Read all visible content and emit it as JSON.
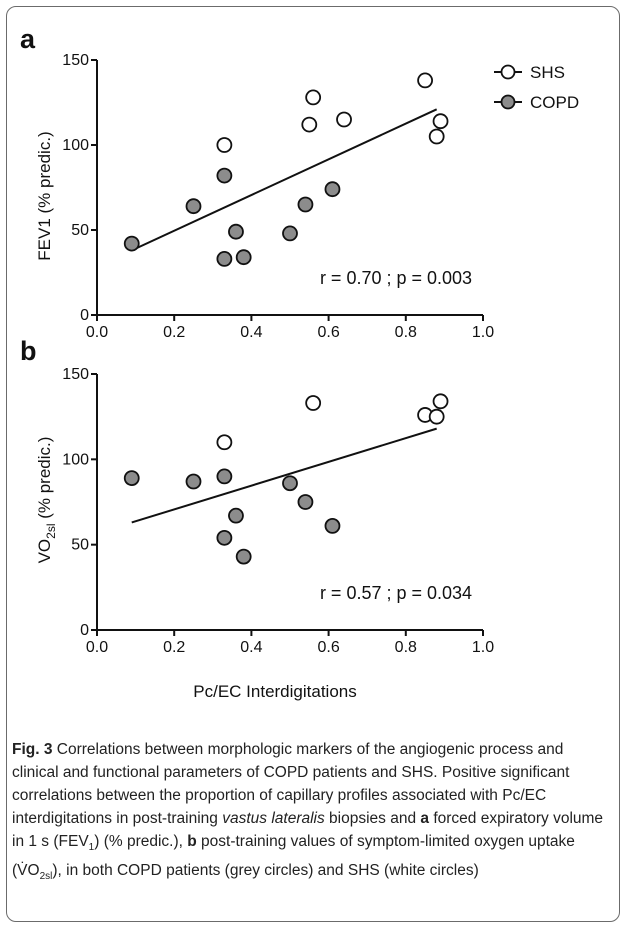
{
  "chart_data": [
    {
      "panel": "a",
      "type": "scatter",
      "ylabel": "FEV1 (% predic.)",
      "xlabel": "",
      "xlim": [
        0.0,
        1.0
      ],
      "ylim": [
        0,
        150
      ],
      "xticks": [
        "0.0",
        "0.2",
        "0.4",
        "0.6",
        "0.8",
        "1.0"
      ],
      "yticks": [
        "0",
        "50",
        "100",
        "150"
      ],
      "series": [
        {
          "name": "SHS",
          "color": "#ffffff",
          "x": [
            0.33,
            0.55,
            0.56,
            0.64,
            0.85,
            0.88,
            0.89
          ],
          "y": [
            100,
            112,
            128,
            115,
            138,
            105,
            114
          ]
        },
        {
          "name": "COPD",
          "color": "#8c8c8c",
          "x": [
            0.09,
            0.25,
            0.33,
            0.33,
            0.36,
            0.38,
            0.5,
            0.54,
            0.61
          ],
          "y": [
            42,
            64,
            82,
            33,
            49,
            34,
            48,
            65,
            74
          ]
        }
      ],
      "fit_line": {
        "x": [
          0.09,
          0.88
        ],
        "y": [
          38,
          121
        ]
      },
      "annotation": "r = 0.70 ; p = 0.003",
      "legend_position": "top-right",
      "grid": false
    },
    {
      "panel": "b",
      "type": "scatter",
      "ylabel": "VO2sl (% predic.)",
      "xlabel": "Pc/EC Interdigitations",
      "xlim": [
        0.0,
        1.0
      ],
      "ylim": [
        0,
        150
      ],
      "xticks": [
        "0.0",
        "0.2",
        "0.4",
        "0.6",
        "0.8",
        "1.0"
      ],
      "yticks": [
        "0",
        "50",
        "100",
        "150"
      ],
      "series": [
        {
          "name": "SHS",
          "color": "#ffffff",
          "x": [
            0.33,
            0.56,
            0.85,
            0.88,
            0.89
          ],
          "y": [
            110,
            133,
            126,
            125,
            134
          ]
        },
        {
          "name": "COPD",
          "color": "#8c8c8c",
          "x": [
            0.09,
            0.25,
            0.33,
            0.33,
            0.36,
            0.38,
            0.5,
            0.54,
            0.61
          ],
          "y": [
            89,
            87,
            90,
            54,
            67,
            43,
            86,
            75,
            61
          ]
        }
      ],
      "fit_line": {
        "x": [
          0.09,
          0.88
        ],
        "y": [
          63,
          118
        ]
      },
      "annotation": "r = 0.57 ; p = 0.034",
      "grid": false
    }
  ],
  "legend": [
    {
      "label": "SHS",
      "color": "#ffffff"
    },
    {
      "label": "COPD",
      "color": "#8c8c8c"
    }
  ],
  "ylabel_b": {
    "main": "VO",
    "sub": "2sl",
    "rest": " (% predic.)"
  },
  "caption": {
    "fig_label": "Fig. 3",
    "part1": " Correlations between morphologic markers of the angiogenic process and clinical and functional parameters of COPD patients and SHS. Positive significant correlations between the proportion of capillary profiles associated with Pc/EC interdigitations in post-training ",
    "italic": "vastus lateralis",
    "part2": " biopsies and ",
    "a": "a",
    "part3": " forced expiratory volume in 1 s (FEV",
    "fev_sub": "1",
    "part4": ") (% predic.), ",
    "b": "b",
    "part5": " post-training values of symptom-limited oxygen uptake (",
    "vo_main": "V̇O",
    "vo_sub": "2sl",
    "part6": "), in both COPD patients (grey circles) and SHS (white circles)"
  }
}
